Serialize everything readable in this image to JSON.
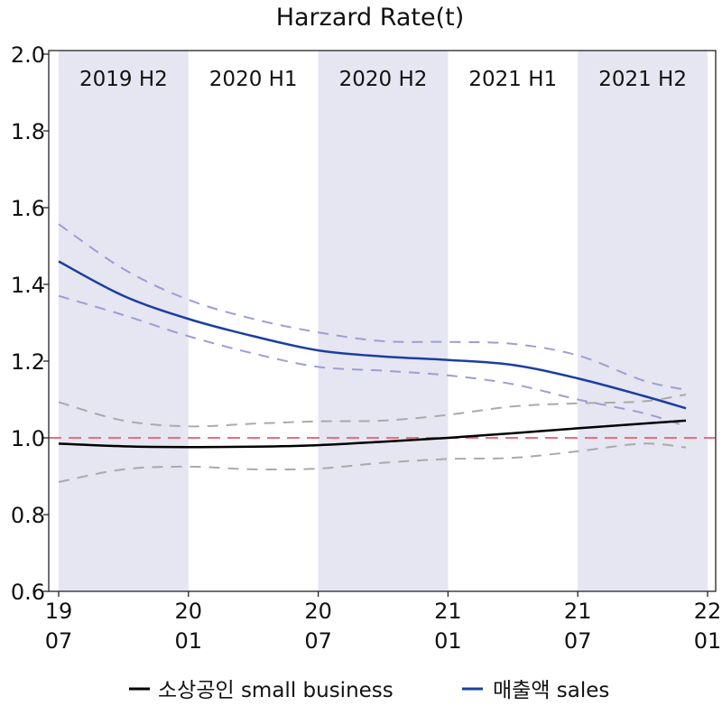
{
  "chart_data": {
    "type": "line",
    "title": "Harzard Rate(t)",
    "xlabel": "",
    "ylabel": "",
    "ylim": [
      0.6,
      2.0
    ],
    "xlim": [
      "2019-07",
      "2022-01"
    ],
    "y_ticks": [
      "0.6",
      "0.8",
      "1.0",
      "1.2",
      "1.4",
      "1.6",
      "1.8",
      "2.0"
    ],
    "x_ticks": [
      {
        "date": "2019-07",
        "line1": "19",
        "line2": "07"
      },
      {
        "date": "2020-01",
        "line1": "20",
        "line2": "01"
      },
      {
        "date": "2020-07",
        "line1": "20",
        "line2": "07"
      },
      {
        "date": "2021-01",
        "line1": "21",
        "line2": "01"
      },
      {
        "date": "2021-07",
        "line1": "21",
        "line2": "07"
      },
      {
        "date": "2022-01",
        "line1": "22",
        "line2": "01"
      }
    ],
    "periods": [
      {
        "label": "2019 H2",
        "start": "2019-07",
        "end": "2020-01",
        "shaded": true
      },
      {
        "label": "2020 H1",
        "start": "2020-01",
        "end": "2020-07",
        "shaded": false
      },
      {
        "label": "2020 H2",
        "start": "2020-07",
        "end": "2021-01",
        "shaded": true
      },
      {
        "label": "2021 H1",
        "start": "2021-01",
        "end": "2021-07",
        "shaded": false
      },
      {
        "label": "2021 H2",
        "start": "2021-07",
        "end": "2022-01",
        "shaded": true
      }
    ],
    "reference_line": {
      "y": 1.0,
      "color": "#e8707a",
      "style": "dashed"
    },
    "x": [
      "2019-07",
      "2019-10",
      "2020-01",
      "2020-04",
      "2020-07",
      "2020-10",
      "2021-01",
      "2021-04",
      "2021-07",
      "2021-10",
      "2021-12"
    ],
    "series": [
      {
        "name": "소상공인 small business",
        "color": "#000000",
        "ci_color": "#aaaaaa",
        "values": [
          0.985,
          0.978,
          0.976,
          0.977,
          0.981,
          0.99,
          1.0,
          1.012,
          1.025,
          1.037,
          1.045
        ],
        "upper": [
          1.093,
          1.045,
          1.03,
          1.037,
          1.043,
          1.045,
          1.06,
          1.082,
          1.09,
          1.095,
          1.113
        ],
        "lower": [
          0.885,
          0.918,
          0.925,
          0.918,
          0.92,
          0.935,
          0.945,
          0.948,
          0.965,
          0.985,
          0.975
        ]
      },
      {
        "name": "매출액 sales",
        "color": "#1a3fa0",
        "ci_color": "#9c9ed4",
        "values": [
          1.46,
          1.37,
          1.31,
          1.265,
          1.228,
          1.212,
          1.203,
          1.19,
          1.155,
          1.11,
          1.077
        ],
        "upper": [
          1.557,
          1.44,
          1.36,
          1.31,
          1.275,
          1.252,
          1.25,
          1.245,
          1.215,
          1.15,
          1.125
        ],
        "lower": [
          1.37,
          1.32,
          1.265,
          1.22,
          1.185,
          1.175,
          1.163,
          1.14,
          1.1,
          1.065,
          1.03
        ]
      }
    ],
    "legend_position": "bottom",
    "grid": false,
    "shade_color": "#e6e5f2"
  }
}
